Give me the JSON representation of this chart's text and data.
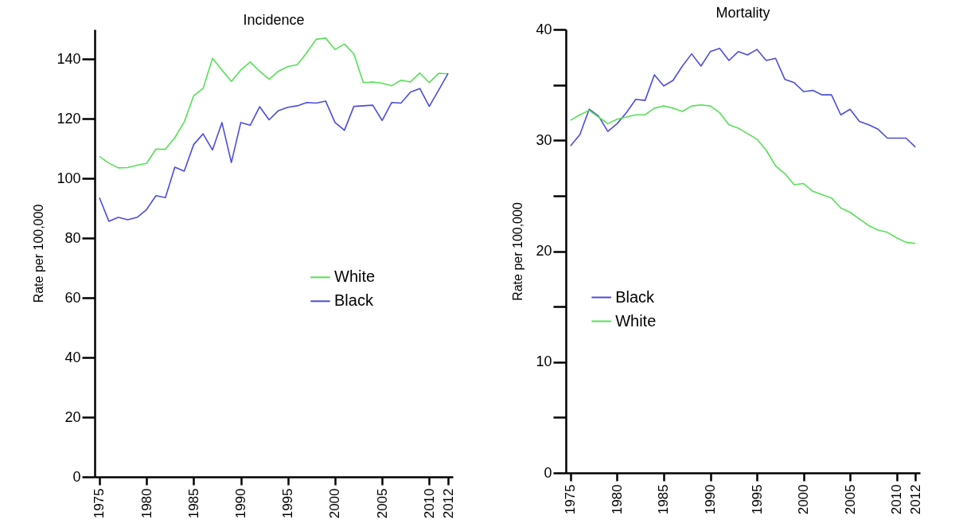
{
  "chart_data": [
    {
      "type": "line",
      "title": "Incidence",
      "ylabel": "Rate per 100,000",
      "x": [
        1975,
        1976,
        1977,
        1978,
        1979,
        1980,
        1981,
        1982,
        1983,
        1984,
        1985,
        1986,
        1987,
        1988,
        1989,
        1990,
        1991,
        1992,
        1993,
        1994,
        1995,
        1996,
        1997,
        1998,
        1999,
        2000,
        2001,
        2002,
        2003,
        2004,
        2005,
        2006,
        2007,
        2008,
        2009,
        2010,
        2011,
        2012
      ],
      "series": [
        {
          "name": "White",
          "color": "#55e055",
          "values": [
            107.4,
            105.2,
            103.6,
            103.7,
            104.5,
            105.1,
            109.9,
            109.8,
            113.7,
            119,
            127.8,
            130.2,
            140.3,
            136.4,
            132.6,
            136.4,
            139.1,
            136,
            133.3,
            136,
            137.6,
            138.2,
            142.2,
            146.7,
            147.1,
            143.3,
            145.1,
            141.8,
            132.2,
            132.4,
            132,
            131.1,
            133,
            132.4,
            135.4,
            132.2,
            135.3,
            135.1
          ]
        },
        {
          "name": "Black",
          "color": "#4c4cdc",
          "values": [
            93.6,
            85.7,
            87,
            86.2,
            87,
            89.6,
            94.3,
            93.6,
            103.8,
            102.5,
            111.4,
            115,
            109.6,
            118.8,
            105.4,
            118.8,
            117.9,
            124.1,
            119.7,
            122.8,
            123.9,
            124.4,
            125.5,
            125.3,
            126,
            118.8,
            116.2,
            124.2,
            124.4,
            124.6,
            119.5,
            125.5,
            125.3,
            129,
            130.2,
            124.2,
            129.7,
            135.3
          ]
        }
      ],
      "xlim": [
        1974.5,
        2012.5
      ],
      "xticks": [
        1975,
        1980,
        1985,
        1990,
        1995,
        2000,
        2005,
        2010,
        2012
      ],
      "ylim": [
        0,
        150
      ],
      "yticks": [
        0,
        20,
        40,
        60,
        80,
        100,
        120,
        140
      ],
      "grid": false,
      "legend": "right",
      "marker": "none",
      "line_style": "solid"
    },
    {
      "type": "line",
      "title": "Mortality",
      "ylabel": "Rate per 100,000",
      "x": [
        1975,
        1976,
        1977,
        1978,
        1979,
        1980,
        1981,
        1982,
        1983,
        1984,
        1985,
        1986,
        1987,
        1988,
        1989,
        1990,
        1991,
        1992,
        1993,
        1994,
        1995,
        1996,
        1997,
        1998,
        1999,
        2000,
        2001,
        2002,
        2003,
        2004,
        2005,
        2006,
        2007,
        2008,
        2009,
        2010,
        2011,
        2012
      ],
      "series": [
        {
          "name": "Black",
          "color": "#4c4cdc",
          "values": [
            29.5,
            30.5,
            32.8,
            32.2,
            30.8,
            31.5,
            32.5,
            33.7,
            33.6,
            35.9,
            34.9,
            35.4,
            36.7,
            37.8,
            36.7,
            38,
            38.3,
            37.2,
            38,
            37.7,
            38.2,
            37.2,
            37.4,
            35.5,
            35.2,
            34.4,
            34.5,
            34.1,
            34.1,
            32.3,
            32.8,
            31.7,
            31.4,
            31,
            30.2,
            30.2,
            30.2,
            29.4
          ]
        },
        {
          "name": "White",
          "color": "#55e055",
          "values": [
            31.8,
            32.3,
            32.7,
            32.1,
            31.5,
            31.9,
            32.1,
            32.3,
            32.3,
            32.9,
            33.1,
            32.9,
            32.6,
            33.1,
            33.2,
            33.1,
            32.5,
            31.4,
            31.1,
            30.6,
            30.1,
            29.1,
            27.7,
            27,
            26,
            26.1,
            25.4,
            25.1,
            24.8,
            23.9,
            23.5,
            22.9,
            22.3,
            21.9,
            21.7,
            21.2,
            20.8,
            20.7
          ]
        }
      ],
      "xlim": [
        1974.5,
        2012.5
      ],
      "xticks": [
        1975,
        1980,
        1985,
        1990,
        1995,
        2000,
        2005,
        2010,
        2012
      ],
      "ylim": [
        0,
        40
      ],
      "yticks": [
        0,
        {
          "value": 5,
          "label": null
        },
        10,
        {
          "value": 15,
          "label": null
        },
        20,
        {
          "value": 25,
          "label": null
        },
        30,
        {
          "value": 35,
          "label": null
        },
        40
      ],
      "grid": false,
      "legend": "left",
      "marker": "none",
      "line_style": "solid"
    }
  ]
}
